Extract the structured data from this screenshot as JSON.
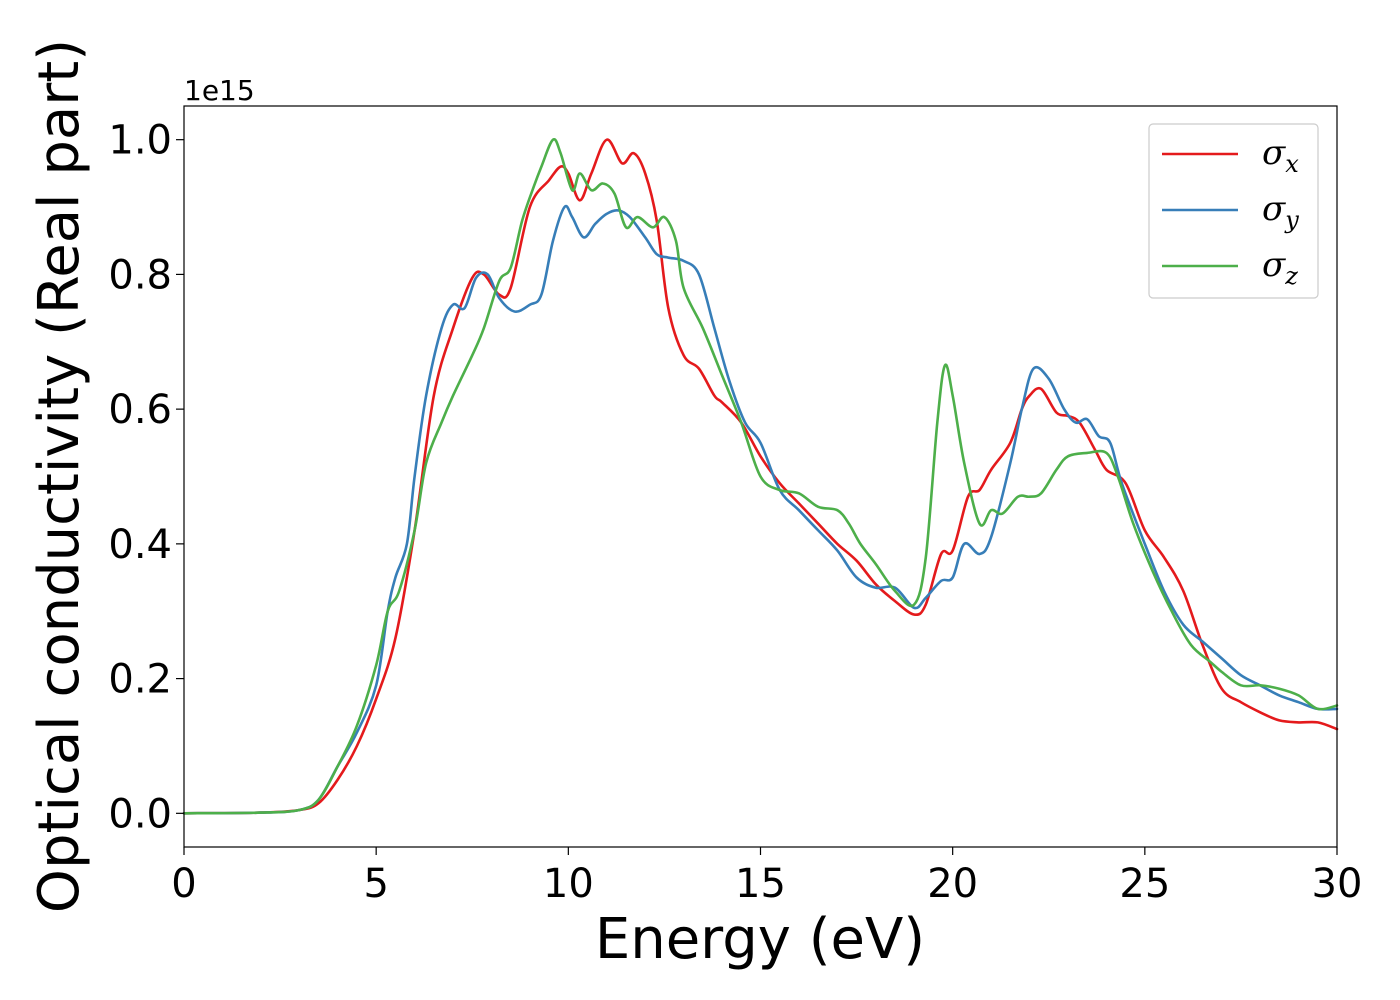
{
  "chart_data": {
    "type": "line",
    "title": "",
    "xlabel": "Energy (eV)",
    "ylabel": "Optical conductivity (Real part)",
    "y_offset_label": "1e15",
    "xlim": [
      0,
      30
    ],
    "ylim": [
      -0.05,
      1.05
    ],
    "xticks": [
      0,
      5,
      10,
      15,
      20,
      25,
      30
    ],
    "xtick_labels": [
      "0",
      "5",
      "10",
      "15",
      "20",
      "25",
      "30"
    ],
    "yticks": [
      0.0,
      0.2,
      0.4,
      0.6,
      0.8,
      1.0
    ],
    "ytick_labels": [
      "0.0",
      "0.2",
      "0.4",
      "0.6",
      "0.8",
      "1.0"
    ],
    "grid": false,
    "legend_position": "top-right",
    "series": [
      {
        "name": "σ",
        "subscript": "x",
        "color": "#e41a1c",
        "points": [
          [
            0,
            0
          ],
          [
            2,
            0.001
          ],
          [
            3,
            0.005
          ],
          [
            3.5,
            0.015
          ],
          [
            4,
            0.05
          ],
          [
            4.5,
            0.1
          ],
          [
            5,
            0.17
          ],
          [
            5.5,
            0.26
          ],
          [
            6,
            0.42
          ],
          [
            6.5,
            0.62
          ],
          [
            7,
            0.72
          ],
          [
            7.5,
            0.795
          ],
          [
            7.8,
            0.8
          ],
          [
            8.2,
            0.77
          ],
          [
            8.5,
            0.78
          ],
          [
            9,
            0.9
          ],
          [
            9.5,
            0.94
          ],
          [
            9.8,
            0.96
          ],
          [
            10,
            0.95
          ],
          [
            10.3,
            0.91
          ],
          [
            10.6,
            0.95
          ],
          [
            11,
            1.0
          ],
          [
            11.4,
            0.965
          ],
          [
            11.7,
            0.98
          ],
          [
            12,
            0.95
          ],
          [
            12.3,
            0.88
          ],
          [
            12.6,
            0.75
          ],
          [
            13,
            0.68
          ],
          [
            13.4,
            0.66
          ],
          [
            13.8,
            0.62
          ],
          [
            14,
            0.61
          ],
          [
            14.5,
            0.58
          ],
          [
            15,
            0.53
          ],
          [
            15.5,
            0.49
          ],
          [
            16,
            0.46
          ],
          [
            16.5,
            0.43
          ],
          [
            17,
            0.4
          ],
          [
            17.5,
            0.375
          ],
          [
            18,
            0.34
          ],
          [
            18.5,
            0.315
          ],
          [
            19,
            0.295
          ],
          [
            19.3,
            0.31
          ],
          [
            19.7,
            0.385
          ],
          [
            20,
            0.39
          ],
          [
            20.4,
            0.47
          ],
          [
            20.7,
            0.48
          ],
          [
            21,
            0.51
          ],
          [
            21.5,
            0.55
          ],
          [
            21.8,
            0.6
          ],
          [
            22,
            0.62
          ],
          [
            22.3,
            0.63
          ],
          [
            22.7,
            0.595
          ],
          [
            23,
            0.59
          ],
          [
            23.3,
            0.58
          ],
          [
            23.7,
            0.54
          ],
          [
            24,
            0.51
          ],
          [
            24.5,
            0.49
          ],
          [
            25,
            0.42
          ],
          [
            25.5,
            0.38
          ],
          [
            26,
            0.33
          ],
          [
            26.5,
            0.25
          ],
          [
            27,
            0.185
          ],
          [
            27.5,
            0.165
          ],
          [
            28,
            0.15
          ],
          [
            28.5,
            0.138
          ],
          [
            29,
            0.135
          ],
          [
            29.5,
            0.135
          ],
          [
            30,
            0.125
          ]
        ]
      },
      {
        "name": "σ",
        "subscript": "y",
        "color": "#377eb8",
        "points": [
          [
            0,
            0
          ],
          [
            2,
            0.001
          ],
          [
            3,
            0.005
          ],
          [
            3.5,
            0.02
          ],
          [
            4,
            0.07
          ],
          [
            4.5,
            0.12
          ],
          [
            5,
            0.19
          ],
          [
            5.3,
            0.3
          ],
          [
            5.5,
            0.35
          ],
          [
            5.8,
            0.4
          ],
          [
            6,
            0.5
          ],
          [
            6.3,
            0.62
          ],
          [
            6.7,
            0.72
          ],
          [
            7,
            0.755
          ],
          [
            7.3,
            0.75
          ],
          [
            7.6,
            0.795
          ],
          [
            7.9,
            0.8
          ],
          [
            8.2,
            0.765
          ],
          [
            8.6,
            0.745
          ],
          [
            9,
            0.755
          ],
          [
            9.3,
            0.77
          ],
          [
            9.6,
            0.85
          ],
          [
            9.9,
            0.9
          ],
          [
            10.1,
            0.885
          ],
          [
            10.4,
            0.855
          ],
          [
            10.7,
            0.875
          ],
          [
            11,
            0.89
          ],
          [
            11.3,
            0.895
          ],
          [
            11.6,
            0.885
          ],
          [
            12,
            0.855
          ],
          [
            12.3,
            0.83
          ],
          [
            12.6,
            0.825
          ],
          [
            13,
            0.82
          ],
          [
            13.4,
            0.8
          ],
          [
            13.8,
            0.72
          ],
          [
            14.2,
            0.64
          ],
          [
            14.6,
            0.58
          ],
          [
            15,
            0.55
          ],
          [
            15.5,
            0.48
          ],
          [
            16,
            0.45
          ],
          [
            16.5,
            0.42
          ],
          [
            17,
            0.39
          ],
          [
            17.5,
            0.35
          ],
          [
            18,
            0.335
          ],
          [
            18.5,
            0.335
          ],
          [
            19,
            0.305
          ],
          [
            19.3,
            0.32
          ],
          [
            19.7,
            0.345
          ],
          [
            20,
            0.35
          ],
          [
            20.3,
            0.4
          ],
          [
            20.7,
            0.385
          ],
          [
            21,
            0.41
          ],
          [
            21.5,
            0.52
          ],
          [
            21.8,
            0.6
          ],
          [
            22.1,
            0.66
          ],
          [
            22.5,
            0.645
          ],
          [
            22.9,
            0.6
          ],
          [
            23.2,
            0.58
          ],
          [
            23.5,
            0.585
          ],
          [
            23.8,
            0.56
          ],
          [
            24.1,
            0.55
          ],
          [
            24.4,
            0.49
          ],
          [
            25,
            0.4
          ],
          [
            25.5,
            0.33
          ],
          [
            26,
            0.28
          ],
          [
            26.5,
            0.255
          ],
          [
            27,
            0.23
          ],
          [
            27.5,
            0.205
          ],
          [
            28,
            0.19
          ],
          [
            28.5,
            0.175
          ],
          [
            29,
            0.165
          ],
          [
            29.5,
            0.155
          ],
          [
            30,
            0.155
          ]
        ]
      },
      {
        "name": "σ",
        "subscript": "z",
        "color": "#4daf4a",
        "points": [
          [
            0,
            0
          ],
          [
            2,
            0.001
          ],
          [
            3,
            0.005
          ],
          [
            3.5,
            0.02
          ],
          [
            4,
            0.07
          ],
          [
            4.5,
            0.13
          ],
          [
            5,
            0.22
          ],
          [
            5.3,
            0.3
          ],
          [
            5.6,
            0.33
          ],
          [
            6,
            0.42
          ],
          [
            6.3,
            0.52
          ],
          [
            6.7,
            0.58
          ],
          [
            7,
            0.62
          ],
          [
            7.5,
            0.68
          ],
          [
            7.8,
            0.72
          ],
          [
            8.2,
            0.79
          ],
          [
            8.5,
            0.81
          ],
          [
            8.8,
            0.88
          ],
          [
            9.1,
            0.93
          ],
          [
            9.3,
            0.96
          ],
          [
            9.6,
            1.0
          ],
          [
            9.8,
            0.98
          ],
          [
            10.1,
            0.925
          ],
          [
            10.3,
            0.95
          ],
          [
            10.6,
            0.925
          ],
          [
            10.9,
            0.935
          ],
          [
            11.2,
            0.92
          ],
          [
            11.5,
            0.87
          ],
          [
            11.8,
            0.885
          ],
          [
            12.2,
            0.87
          ],
          [
            12.5,
            0.885
          ],
          [
            12.8,
            0.85
          ],
          [
            13,
            0.78
          ],
          [
            13.5,
            0.72
          ],
          [
            14,
            0.65
          ],
          [
            14.5,
            0.58
          ],
          [
            15,
            0.5
          ],
          [
            15.5,
            0.48
          ],
          [
            16,
            0.475
          ],
          [
            16.5,
            0.455
          ],
          [
            17,
            0.45
          ],
          [
            17.3,
            0.43
          ],
          [
            17.6,
            0.4
          ],
          [
            18,
            0.37
          ],
          [
            18.5,
            0.33
          ],
          [
            19,
            0.31
          ],
          [
            19.3,
            0.38
          ],
          [
            19.6,
            0.58
          ],
          [
            19.8,
            0.665
          ],
          [
            20,
            0.62
          ],
          [
            20.3,
            0.52
          ],
          [
            20.7,
            0.43
          ],
          [
            21,
            0.45
          ],
          [
            21.3,
            0.445
          ],
          [
            21.7,
            0.47
          ],
          [
            22,
            0.47
          ],
          [
            22.3,
            0.475
          ],
          [
            22.7,
            0.51
          ],
          [
            23,
            0.53
          ],
          [
            23.5,
            0.535
          ],
          [
            24,
            0.535
          ],
          [
            24.3,
            0.5
          ],
          [
            24.7,
            0.43
          ],
          [
            25.2,
            0.36
          ],
          [
            25.7,
            0.3
          ],
          [
            26.2,
            0.25
          ],
          [
            26.7,
            0.225
          ],
          [
            27,
            0.21
          ],
          [
            27.5,
            0.19
          ],
          [
            28,
            0.19
          ],
          [
            28.5,
            0.185
          ],
          [
            29,
            0.175
          ],
          [
            29.5,
            0.155
          ],
          [
            30,
            0.16
          ]
        ]
      }
    ]
  }
}
